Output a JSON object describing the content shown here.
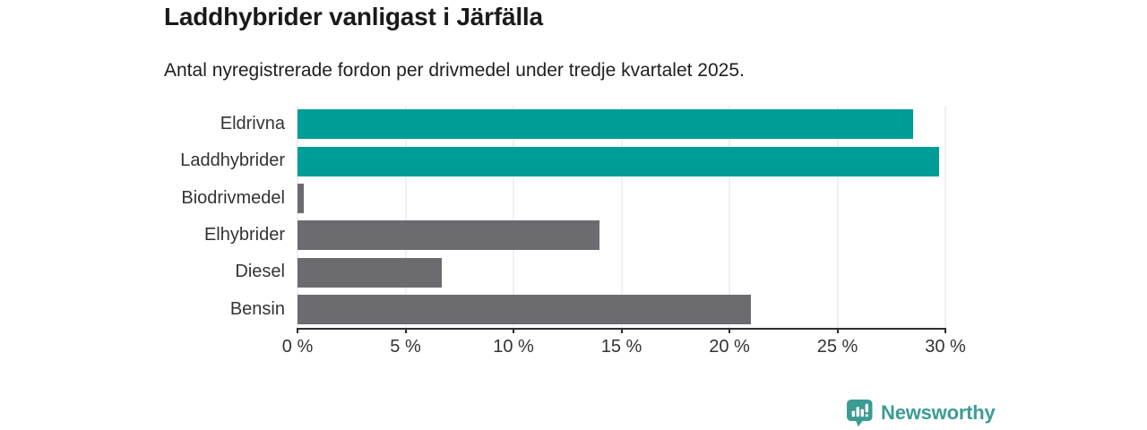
{
  "chart_data": {
    "type": "bar",
    "orientation": "horizontal",
    "title": "Laddhybrider vanligast i Järfälla",
    "subtitle": "Antal nyregistrerade fordon per drivmedel under tredje kvartalet 2025.",
    "categories": [
      "Eldrivna",
      "Laddhybrider",
      "Biodrivmedel",
      "Elhybrider",
      "Diesel",
      "Bensin"
    ],
    "values": [
      28.5,
      29.7,
      0.3,
      14,
      6.7,
      21
    ],
    "unit": "%",
    "bar_colors": [
      "#009d96",
      "#009d96",
      "#6c6c70",
      "#6c6c70",
      "#6c6c70",
      "#6c6c70"
    ],
    "xlabel": "",
    "ylabel": "",
    "xlim": [
      0,
      30
    ],
    "x_ticks": [
      {
        "value": 0,
        "label": "0 %"
      },
      {
        "value": 5,
        "label": "5 %"
      },
      {
        "value": 10,
        "label": "10 %"
      },
      {
        "value": 15,
        "label": "15 %"
      },
      {
        "value": 20,
        "label": "20 %"
      },
      {
        "value": 25,
        "label": "25 %"
      },
      {
        "value": 30,
        "label": "30 %"
      }
    ],
    "grid": true,
    "legend": null,
    "colors": {
      "highlight": "#009d96",
      "default": "#6c6c70",
      "gridline": "#e2e2e2",
      "axis": "#2e2e2e",
      "text": "#333333"
    }
  },
  "footer": {
    "brand": "Newsworthy",
    "brand_color": "#3c9c94"
  }
}
